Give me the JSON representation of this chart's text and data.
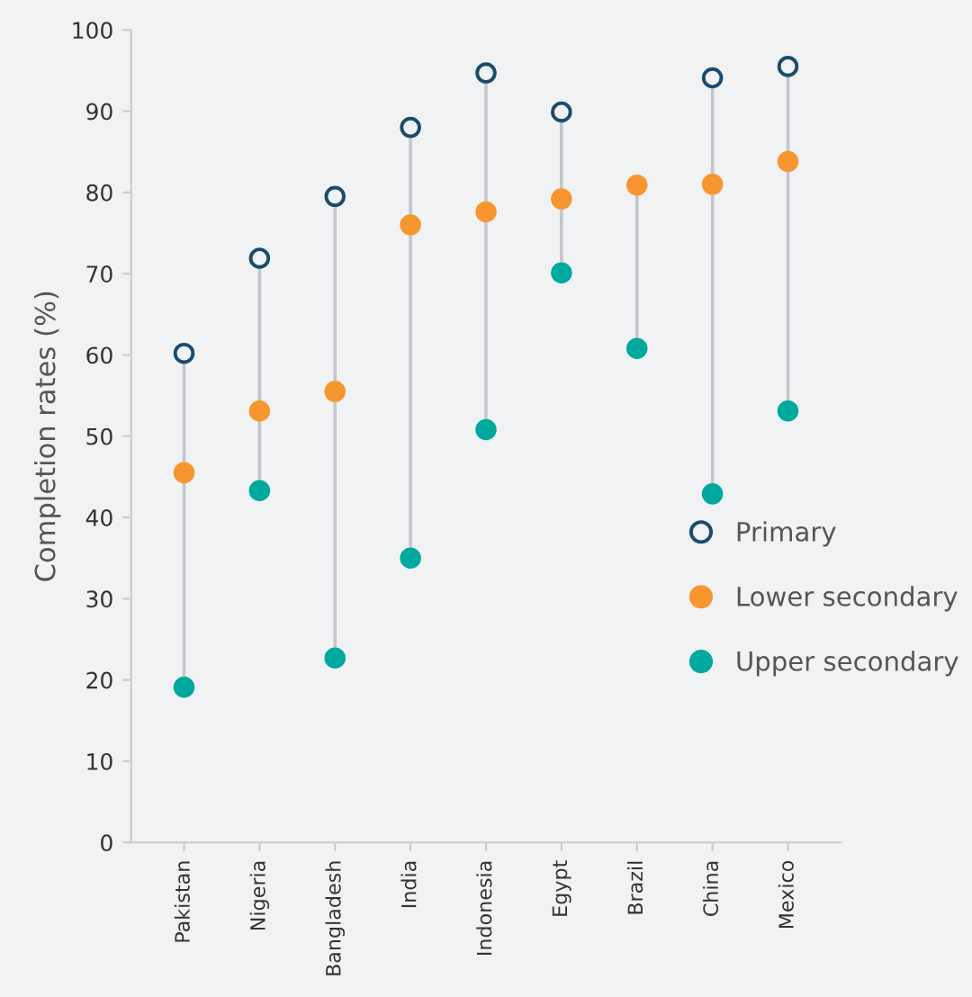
{
  "chart_data": {
    "type": "scatter",
    "ylabel": "Completion rates (%)",
    "categories": [
      "Pakistan",
      "Nigeria",
      "Bangladesh",
      "India",
      "Indonesia",
      "Egypt",
      "Brazil",
      "China",
      "Mexico"
    ],
    "series": [
      {
        "name": "Primary",
        "color": "#1b4b6b",
        "values": [
          60.2,
          71.9,
          79.5,
          88.0,
          94.7,
          89.9,
          null,
          94.1,
          95.5
        ]
      },
      {
        "name": "Lower secondary",
        "color": "#f7962f",
        "values": [
          45.5,
          53.1,
          55.5,
          76.0,
          77.6,
          79.2,
          80.9,
          81.0,
          83.8
        ]
      },
      {
        "name": "Upper secondary",
        "color": "#00a99d",
        "values": [
          19.1,
          43.3,
          22.7,
          35.0,
          50.8,
          70.1,
          60.8,
          42.9,
          53.1
        ]
      }
    ],
    "ylim": [
      0,
      100
    ],
    "yticks": [
      0,
      10,
      20,
      30,
      40,
      50,
      60,
      70,
      80,
      90,
      100
    ],
    "marker": "circle",
    "legend": "right",
    "grid": false
  }
}
